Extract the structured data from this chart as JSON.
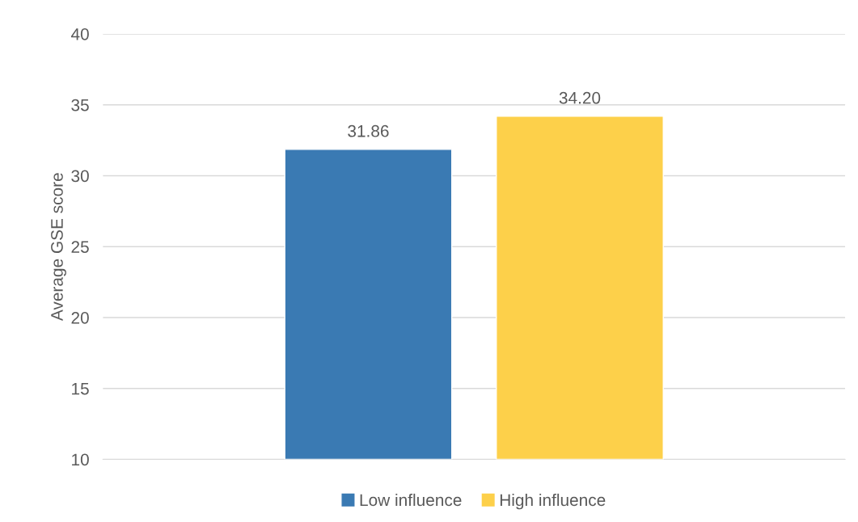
{
  "chart_data": {
    "type": "bar",
    "ylabel": "Average GSE score",
    "categories": [
      null
    ],
    "series": [
      {
        "name": "Low influence",
        "color": "#3a7ab3",
        "values": [
          31.86
        ],
        "value_labels": [
          "31.86"
        ]
      },
      {
        "name": "High influence",
        "color": "#fdd04a",
        "values": [
          34.2
        ],
        "value_labels": [
          "34.20"
        ]
      }
    ],
    "ylim": [
      10,
      40
    ],
    "yticks": [
      10,
      15,
      20,
      25,
      30,
      35,
      40
    ],
    "grid": "y",
    "legend": "bottom"
  }
}
